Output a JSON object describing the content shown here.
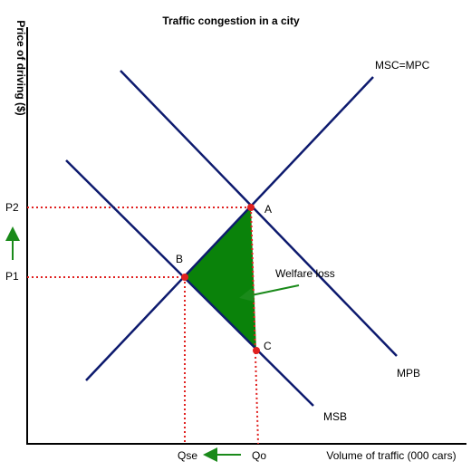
{
  "title": "Traffic congestion in a city",
  "axes": {
    "y_label": "Price of driving ($)",
    "x_label": "Volume of traffic (000 cars)"
  },
  "curves": [
    {
      "label": "MSC=MPC"
    },
    {
      "label": "MPB"
    },
    {
      "label": "MSB"
    }
  ],
  "points": [
    {
      "label": "A"
    },
    {
      "label": "B"
    },
    {
      "label": "C"
    }
  ],
  "price_labels": [
    "P2",
    "P1"
  ],
  "quantity_labels": [
    "Qse",
    "Qo"
  ],
  "annotation": "Welfare loss"
}
